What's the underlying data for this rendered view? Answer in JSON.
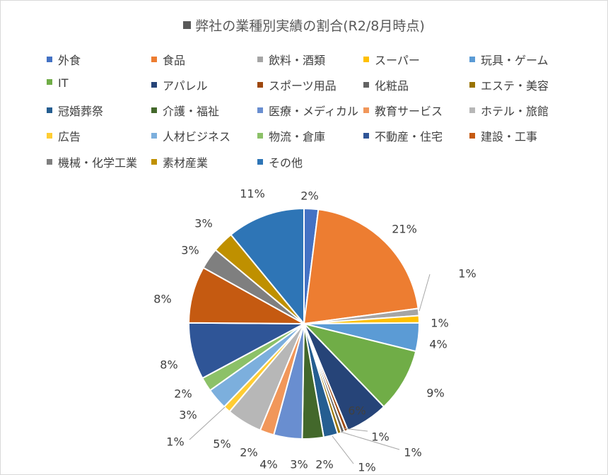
{
  "chart_data": {
    "type": "pie",
    "title": "弊社の業種別実績の割合(R2/8月時点)",
    "legend_position": "top",
    "slices": [
      {
        "name": "外食",
        "value": 2,
        "label": "2%",
        "color": "#4472C4"
      },
      {
        "name": "食品",
        "value": 21,
        "label": "21%",
        "color": "#ED7D31"
      },
      {
        "name": "飲料・酒類",
        "value": 1,
        "label": "1%",
        "color": "#A5A5A5"
      },
      {
        "name": "スーパー",
        "value": 1,
        "label": "1%",
        "color": "#FFC000"
      },
      {
        "name": "玩具・ゲーム",
        "value": 4,
        "label": "4%",
        "color": "#5B9BD5"
      },
      {
        "name": "IT",
        "value": 9,
        "label": "9%",
        "color": "#70AD47"
      },
      {
        "name": "アパレル",
        "value": 6,
        "label": "6%",
        "color": "#264478"
      },
      {
        "name": "スポーツ用品",
        "value": 0.5,
        "label": "1%",
        "color": "#9E480E"
      },
      {
        "name": "化粧品",
        "value": 0.5,
        "label": "1%",
        "color": "#636363"
      },
      {
        "name": "エステ・美容",
        "value": 0.5,
        "label": "1%",
        "color": "#997300"
      },
      {
        "name": "冠婚葬祭",
        "value": 2,
        "label": "2%",
        "color": "#255E91"
      },
      {
        "name": "介護・福祉",
        "value": 3,
        "label": "3%",
        "color": "#43682B"
      },
      {
        "name": "医療・メディカル",
        "value": 4,
        "label": "4%",
        "color": "#698ED0"
      },
      {
        "name": "教育サービス",
        "value": 2,
        "label": "2%",
        "color": "#F1975A"
      },
      {
        "name": "ホテル・旅館",
        "value": 5,
        "label": "5%",
        "color": "#B7B7B7"
      },
      {
        "name": "広告",
        "value": 1,
        "label": "1%",
        "color": "#FFCD33"
      },
      {
        "name": "人材ビジネス",
        "value": 3,
        "label": "3%",
        "color": "#7CAFDD"
      },
      {
        "name": "物流・倉庫",
        "value": 2,
        "label": "2%",
        "color": "#8CC168"
      },
      {
        "name": "不動産・住宅",
        "value": 8,
        "label": "8%",
        "color": "#2F5597"
      },
      {
        "name": "建設・工事",
        "value": 8,
        "label": "8%",
        "color": "#C55A11"
      },
      {
        "name": "機械・化学工業",
        "value": 3,
        "label": "3%",
        "color": "#7F7F7F"
      },
      {
        "name": "素材産業",
        "value": 3,
        "label": "3%",
        "color": "#BF9000"
      },
      {
        "name": "その他",
        "value": 11,
        "label": "11%",
        "color": "#2E75B6"
      }
    ]
  }
}
